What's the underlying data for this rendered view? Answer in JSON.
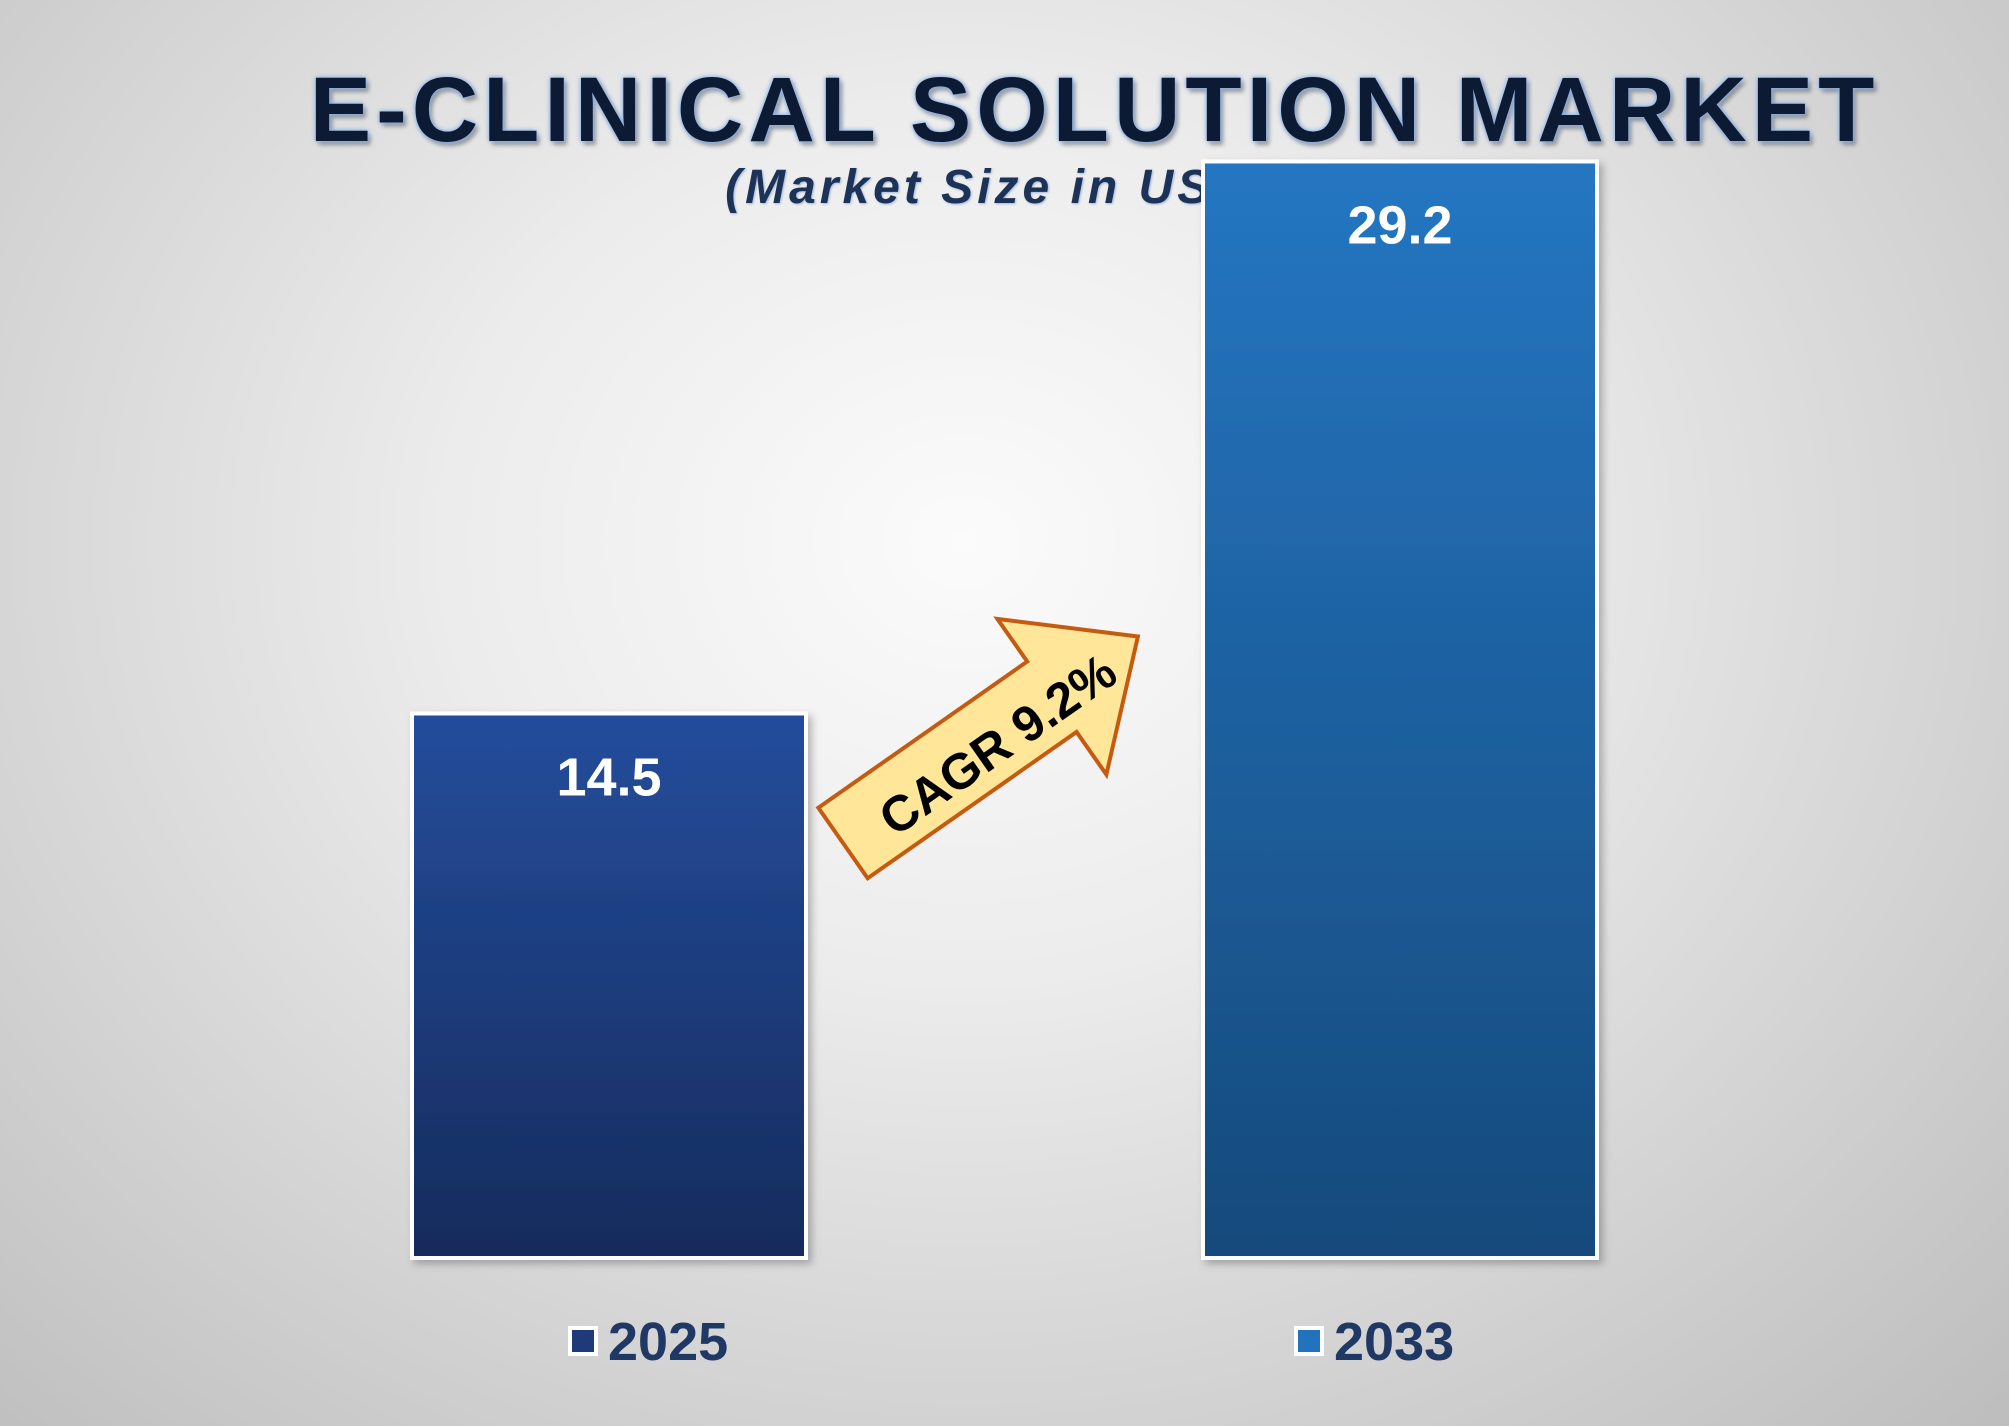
{
  "chart_data": {
    "type": "bar",
    "title": "E-CLINICAL SOLUTION MARKET",
    "subtitle": "(Market Size in USD Billion)",
    "categories": [
      "2025",
      "2033"
    ],
    "values": [
      14.5,
      29.2
    ],
    "data_labels": [
      "14.5",
      "29.2"
    ],
    "ylim": [
      0,
      33.5
    ],
    "grid": false,
    "legend": "bottom",
    "colors": [
      "#1f3a78",
      "#2272bd"
    ],
    "annotation": "CAGR 9.2%"
  }
}
